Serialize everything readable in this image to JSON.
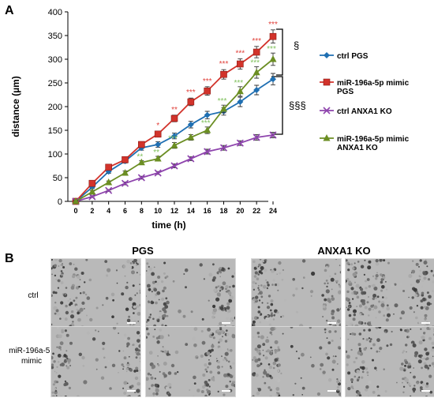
{
  "panel_a_label": "A",
  "panel_b_label": "B",
  "chart_data": {
    "type": "line",
    "title": "",
    "xlabel": "time (h)",
    "ylabel": "distance (µm)",
    "xlim": [
      0,
      24
    ],
    "ylim": [
      0,
      400
    ],
    "x": [
      0,
      2,
      4,
      6,
      8,
      10,
      12,
      14,
      16,
      18,
      20,
      22,
      24
    ],
    "x_ticks": [
      "0",
      "2",
      "4",
      "6",
      "8",
      "10",
      "12",
      "14",
      "16",
      "18",
      "20",
      "22",
      "24"
    ],
    "y_ticks": [
      "0",
      "50",
      "100",
      "150",
      "200",
      "250",
      "300",
      "350",
      "400"
    ],
    "grid": false,
    "legend_position": "right",
    "series": [
      {
        "name": "ctrl PGS",
        "color": "#1f6fb2",
        "marker": "diamond",
        "values": [
          0,
          30,
          63,
          85,
          113,
          120,
          138,
          162,
          182,
          190,
          210,
          235,
          258
        ],
        "errors": [
          2,
          3,
          4,
          4,
          5,
          6,
          6,
          7,
          8,
          8,
          10,
          10,
          12
        ]
      },
      {
        "name": "miR-196a-5p mimic PGS",
        "color": "#d2332b",
        "marker": "square",
        "values": [
          0,
          38,
          72,
          88,
          120,
          142,
          175,
          210,
          233,
          268,
          290,
          315,
          348
        ],
        "errors": [
          2,
          3,
          4,
          4,
          5,
          6,
          7,
          8,
          9,
          10,
          11,
          12,
          14
        ]
      },
      {
        "name": "ctrl ANXA1 KO",
        "color": "#8e44ad",
        "marker": "x",
        "values": [
          0,
          10,
          23,
          38,
          50,
          60,
          75,
          90,
          105,
          113,
          123,
          135,
          140
        ],
        "errors": [
          1,
          2,
          2,
          3,
          3,
          3,
          4,
          4,
          5,
          5,
          5,
          6,
          6
        ]
      },
      {
        "name": "miR-196a-5p mimic ANXA1 KO",
        "color": "#6b8e23",
        "marker": "triangle",
        "series_line_color": "#6b8e23",
        "values": [
          0,
          20,
          40,
          60,
          82,
          90,
          118,
          135,
          150,
          195,
          232,
          272,
          300
        ],
        "errors": [
          2,
          3,
          3,
          4,
          4,
          5,
          6,
          6,
          7,
          8,
          10,
          12,
          13
        ]
      }
    ],
    "significance_red": [
      {
        "x": 10,
        "label": "*"
      },
      {
        "x": 12,
        "label": "**"
      },
      {
        "x": 14,
        "label": "***"
      },
      {
        "x": 16,
        "label": "***"
      },
      {
        "x": 18,
        "label": "***"
      },
      {
        "x": 20,
        "label": "***"
      },
      {
        "x": 22,
        "label": "***"
      },
      {
        "x": 24,
        "label": "***"
      }
    ],
    "significance_green": [
      {
        "x": 8,
        "label": "**"
      },
      {
        "x": 10,
        "label": "**"
      },
      {
        "x": 12,
        "label": "***"
      },
      {
        "x": 16,
        "label": "***"
      },
      {
        "x": 18,
        "label": "***"
      },
      {
        "x": 20,
        "label": "***"
      },
      {
        "x": 22,
        "label": "***"
      },
      {
        "x": 24,
        "label": "***"
      }
    ],
    "bracket_labels": [
      "§",
      "§§§"
    ]
  },
  "panel_b": {
    "group_titles": [
      "PGS",
      "ANXA1 KO"
    ],
    "row_labels": [
      "ctrl",
      "miR-196a-5p\nmimic"
    ]
  }
}
